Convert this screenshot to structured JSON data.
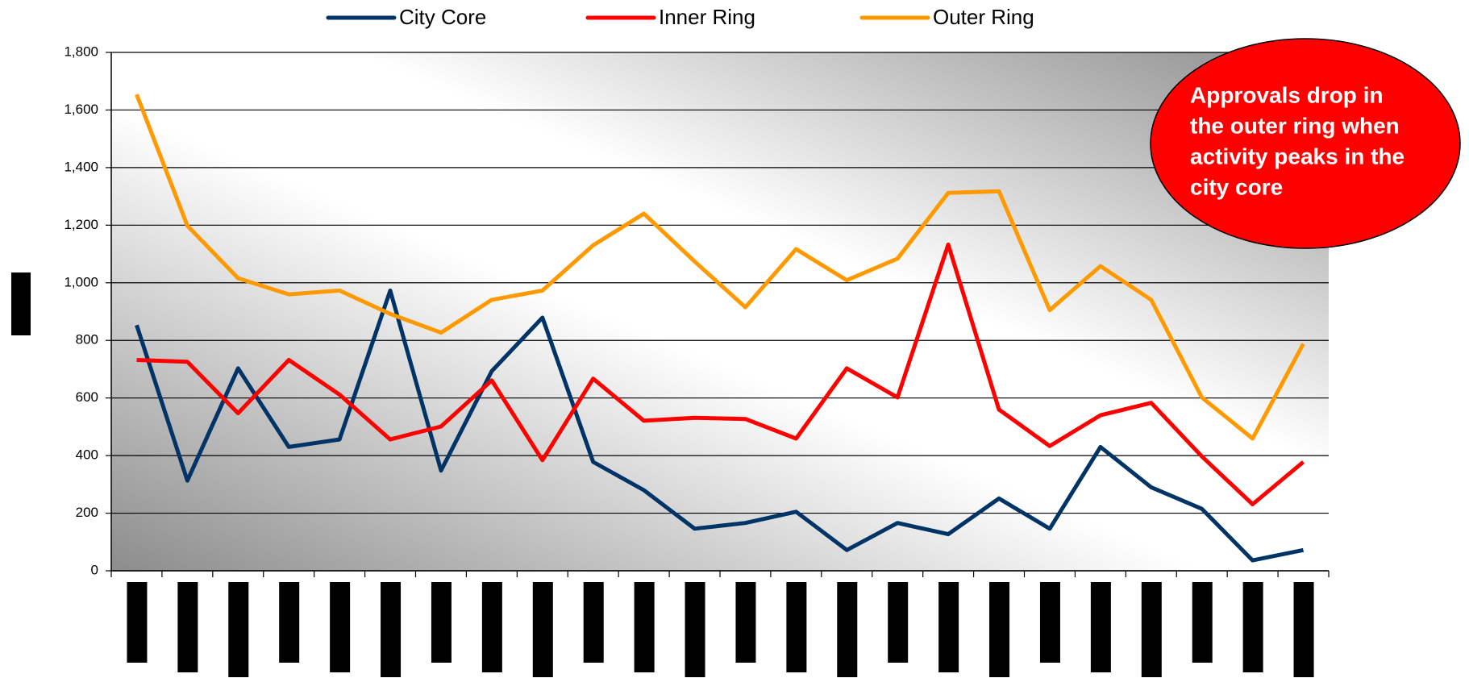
{
  "chart_data": {
    "type": "line",
    "categories": [
      null,
      null,
      null,
      null,
      null,
      null,
      null,
      null,
      null,
      null,
      null,
      null,
      null,
      null,
      null,
      null,
      null,
      null,
      null,
      null,
      null,
      null,
      null,
      null
    ],
    "series": [
      {
        "name": "City Core",
        "color": "#003366",
        "values": [
          853,
          313,
          703,
          430,
          456,
          973,
          348,
          693,
          879,
          378,
          280,
          146,
          166,
          205,
          72,
          166,
          127,
          251,
          146,
          430,
          290,
          215,
          36,
          72
        ]
      },
      {
        "name": "Inner Ring",
        "color": "#ff0000",
        "values": [
          732,
          726,
          547,
          732,
          612,
          456,
          501,
          661,
          384,
          667,
          521,
          531,
          527,
          459,
          703,
          602,
          1133,
          560,
          433,
          540,
          583,
          397,
          231,
          378
        ]
      },
      {
        "name": "Outer Ring",
        "color": "#ff9900",
        "values": [
          1654,
          1198,
          1016,
          960,
          973,
          892,
          827,
          941,
          973,
          1130,
          1240,
          1074,
          915,
          1117,
          1009,
          1084,
          1312,
          1318,
          905,
          1058,
          941,
          602,
          459,
          788
        ]
      }
    ],
    "ylim": [
      0,
      1800
    ],
    "yticks": [
      0,
      200,
      400,
      600,
      800,
      {
        "value": 1000,
        "label": "1,000"
      },
      {
        "value": 1200,
        "label": "1,200"
      },
      {
        "value": 1400,
        "label": "1,400"
      },
      {
        "value": 1600,
        "label": "1,600"
      },
      {
        "value": 1800,
        "label": "1,800"
      }
    ],
    "grid": true,
    "legend": "top",
    "annotation": [
      "Approvals drop in",
      "the outer ring when",
      "activity peaks in the",
      "city core"
    ]
  }
}
